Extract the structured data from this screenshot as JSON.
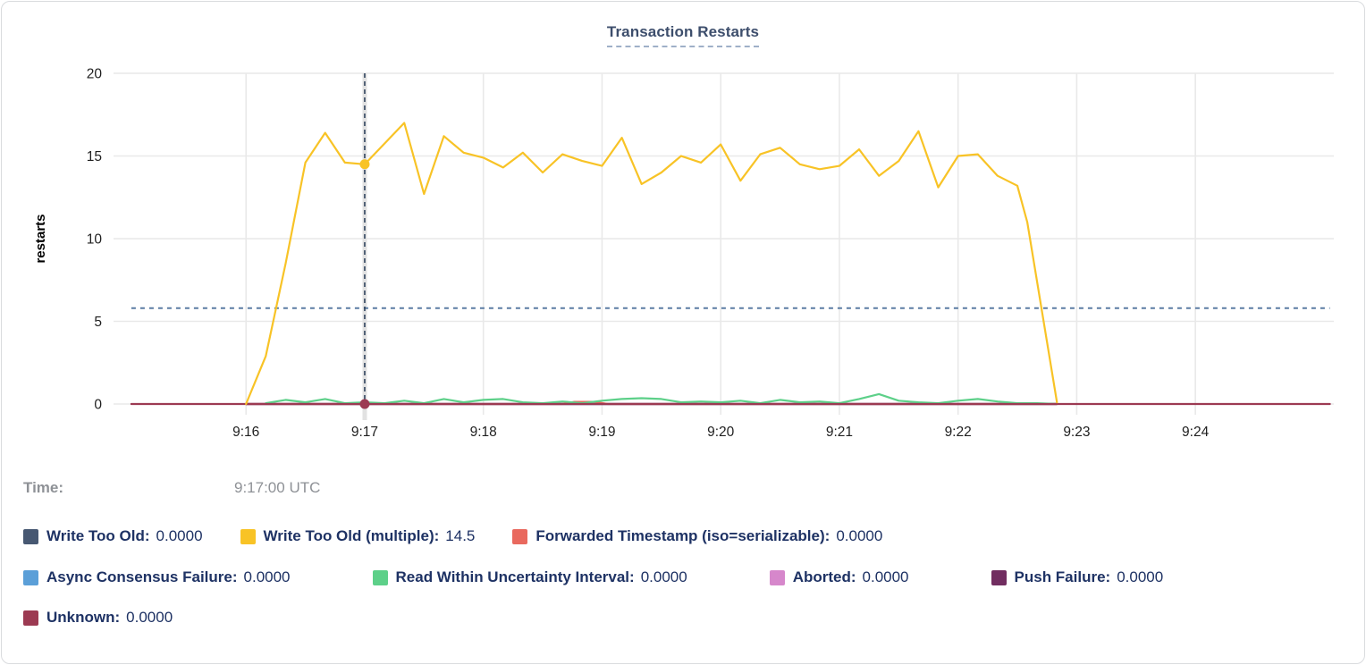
{
  "card": {
    "title": "Transaction Restarts"
  },
  "readout": {
    "time_label": "Time:",
    "time_value": "9:17:00 UTC"
  },
  "colors": {
    "grid": "#e9e9e9",
    "hover_band": "#e2e2e2",
    "threshold_dash": "#5b7ca3",
    "crosshair_dash": "#32455f",
    "tick_text": "#1f1f1f",
    "legend_text": "#1e3264",
    "title_text": "#3d4e6c",
    "readout_text": "#8e9196"
  },
  "chart_data": {
    "type": "line",
    "title": "Transaction Restarts",
    "xlabel": "",
    "ylabel": "restarts",
    "ylim": [
      0,
      20
    ],
    "yticks": [
      0,
      5,
      10,
      15,
      20
    ],
    "x_ticks": [
      {
        "t": 60,
        "label": "9:16"
      },
      {
        "t": 120,
        "label": "9:17"
      },
      {
        "t": 180,
        "label": "9:18"
      },
      {
        "t": 240,
        "label": "9:19"
      },
      {
        "t": 300,
        "label": "9:20"
      },
      {
        "t": 360,
        "label": "9:21"
      },
      {
        "t": 420,
        "label": "9:22"
      },
      {
        "t": 480,
        "label": "9:23"
      },
      {
        "t": 540,
        "label": "9:24"
      }
    ],
    "t_domain_seconds_since_9_15": [
      -7,
      610
    ],
    "grid": true,
    "legend_position": "bottom",
    "threshold_line": {
      "value": 5.8,
      "style": "dashed",
      "color": "#5b7ca3",
      "t_start": 2,
      "t_end": 608
    },
    "crosshair": {
      "t": 120,
      "time_label": "9:17:00 UTC",
      "dots": [
        {
          "series_id": "write_too_old_multiple",
          "value": 14.5
        },
        {
          "series_id": "unknown",
          "value": 0
        }
      ]
    },
    "series": [
      {
        "id": "write_too_old",
        "label": "Write Too Old",
        "color": "#475872",
        "legend_value": "0.0000",
        "points": [
          [
            60,
            0
          ],
          [
            470,
            0
          ]
        ]
      },
      {
        "id": "async_consensus_failure",
        "label": "Async Consensus Failure",
        "color": "#5b9fd8",
        "legend_value": "0.0000",
        "points": [
          [
            60,
            0
          ],
          [
            470,
            0
          ]
        ]
      },
      {
        "id": "aborted",
        "label": "Aborted",
        "color": "#d687cb",
        "legend_value": "0.0000",
        "points": [
          [
            60,
            0
          ],
          [
            470,
            0
          ]
        ]
      },
      {
        "id": "push_failure",
        "label": "Push Failure",
        "color": "#712d60",
        "legend_value": "0.0000",
        "points": [
          [
            60,
            0
          ],
          [
            470,
            0
          ]
        ]
      },
      {
        "id": "forwarded_timestamp",
        "label": "Forwarded Timestamp (iso=serializable)",
        "color": "#e9695e",
        "legend_value": "0.0000",
        "points": [
          [
            60,
            0
          ],
          [
            220,
            0
          ],
          [
            226,
            0.13
          ],
          [
            236,
            0.13
          ],
          [
            243,
            0
          ],
          [
            470,
            0
          ]
        ]
      },
      {
        "id": "read_within_uncertainty_interval",
        "label": "Read Within Uncertainty Interval",
        "color": "#5dd089",
        "legend_value": "0.0000",
        "points": [
          [
            70,
            0.05
          ],
          [
            80,
            0.25
          ],
          [
            90,
            0.1
          ],
          [
            100,
            0.3
          ],
          [
            110,
            0.05
          ],
          [
            120,
            0.1
          ],
          [
            130,
            0.05
          ],
          [
            140,
            0.2
          ],
          [
            150,
            0.05
          ],
          [
            160,
            0.3
          ],
          [
            170,
            0.1
          ],
          [
            180,
            0.25
          ],
          [
            190,
            0.3
          ],
          [
            200,
            0.1
          ],
          [
            210,
            0.05
          ],
          [
            220,
            0.15
          ],
          [
            230,
            0.05
          ],
          [
            240,
            0.2
          ],
          [
            250,
            0.3
          ],
          [
            260,
            0.35
          ],
          [
            270,
            0.3
          ],
          [
            280,
            0.1
          ],
          [
            290,
            0.15
          ],
          [
            300,
            0.1
          ],
          [
            310,
            0.2
          ],
          [
            320,
            0.05
          ],
          [
            330,
            0.25
          ],
          [
            340,
            0.1
          ],
          [
            350,
            0.15
          ],
          [
            360,
            0.05
          ],
          [
            370,
            0.3
          ],
          [
            380,
            0.6
          ],
          [
            390,
            0.2
          ],
          [
            400,
            0.1
          ],
          [
            410,
            0.05
          ],
          [
            420,
            0.2
          ],
          [
            430,
            0.3
          ],
          [
            440,
            0.15
          ],
          [
            450,
            0.05
          ],
          [
            460,
            0.05
          ],
          [
            470,
            0
          ]
        ]
      },
      {
        "id": "unknown",
        "label": "Unknown",
        "color": "#9c3a52",
        "legend_value": "0.0000",
        "points": [
          [
            2,
            0
          ],
          [
            608,
            0
          ]
        ]
      },
      {
        "id": "write_too_old_multiple",
        "label": "Write Too Old (multiple)",
        "color": "#f8c326",
        "legend_value": "14.5",
        "points": [
          [
            60,
            0
          ],
          [
            70,
            2.9
          ],
          [
            80,
            8.5
          ],
          [
            90,
            14.6
          ],
          [
            100,
            16.4
          ],
          [
            110,
            14.6
          ],
          [
            120,
            14.5
          ],
          [
            140,
            17.0
          ],
          [
            150,
            12.7
          ],
          [
            160,
            16.2
          ],
          [
            170,
            15.2
          ],
          [
            180,
            14.9
          ],
          [
            190,
            14.3
          ],
          [
            200,
            15.2
          ],
          [
            210,
            14.0
          ],
          [
            220,
            15.1
          ],
          [
            230,
            14.7
          ],
          [
            240,
            14.4
          ],
          [
            250,
            16.1
          ],
          [
            260,
            13.3
          ],
          [
            270,
            14.0
          ],
          [
            280,
            15.0
          ],
          [
            290,
            14.6
          ],
          [
            300,
            15.7
          ],
          [
            310,
            13.5
          ],
          [
            320,
            15.1
          ],
          [
            330,
            15.5
          ],
          [
            340,
            14.5
          ],
          [
            350,
            14.2
          ],
          [
            360,
            14.4
          ],
          [
            370,
            15.4
          ],
          [
            380,
            13.8
          ],
          [
            390,
            14.7
          ],
          [
            400,
            16.5
          ],
          [
            410,
            13.1
          ],
          [
            420,
            15.0
          ],
          [
            430,
            15.1
          ],
          [
            440,
            13.8
          ],
          [
            450,
            13.2
          ],
          [
            455,
            11.0
          ],
          [
            470,
            0.1
          ]
        ]
      }
    ],
    "legend_rows": [
      [
        "write_too_old",
        "write_too_old_multiple",
        "forwarded_timestamp"
      ],
      [
        "async_consensus_failure",
        "read_within_uncertainty_interval",
        "aborted",
        "push_failure"
      ],
      [
        "unknown"
      ]
    ]
  }
}
